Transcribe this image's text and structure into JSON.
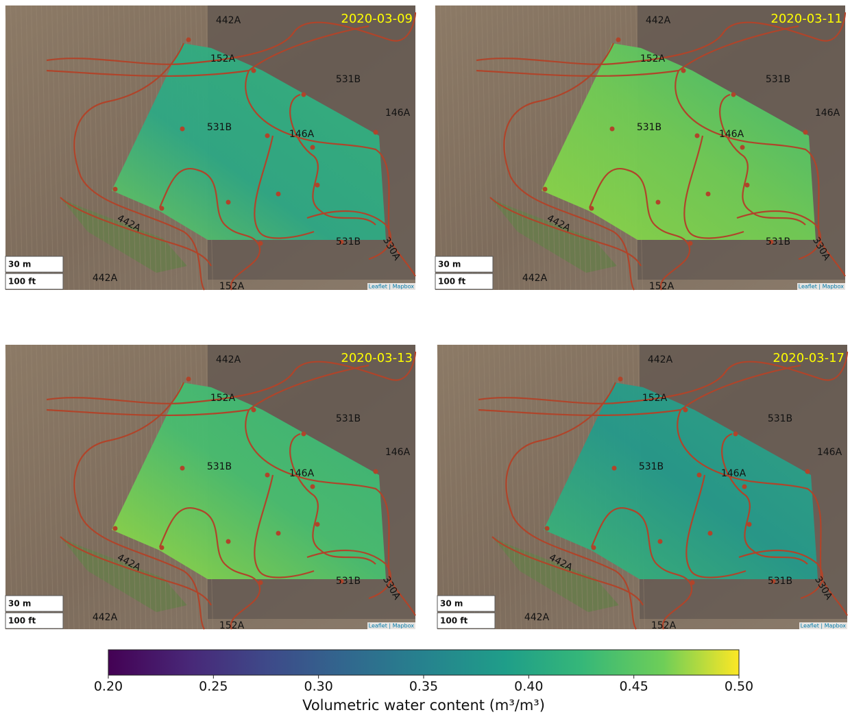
{
  "panels": [
    {
      "date": "2020-03-09",
      "soil_labels": [
        "442A",
        "152A",
        "531B",
        "146A",
        "531B",
        "146A",
        "442A",
        "531B",
        "330A",
        "442A",
        "152A"
      ],
      "scale": [
        "30 m",
        "100 ft"
      ],
      "attribution": "Leaflet | Mapbox"
    },
    {
      "date": "2020-03-11",
      "soil_labels": [
        "442A",
        "152A",
        "531B",
        "146A",
        "531B",
        "146A",
        "442A",
        "531B",
        "330A",
        "442A",
        "152A"
      ],
      "scale": [
        "30 m",
        "100 ft"
      ],
      "attribution": "Leaflet | Mapbox"
    },
    {
      "date": "2020-03-13",
      "soil_labels": [
        "442A",
        "152A",
        "531B",
        "146A",
        "531B",
        "146A",
        "442A",
        "531B",
        "330A",
        "442A",
        "152A"
      ],
      "scale": [
        "30 m",
        "100 ft"
      ],
      "attribution": "Leaflet | Mapbox"
    },
    {
      "date": "2020-03-17",
      "soil_labels": [
        "442A",
        "152A",
        "531B",
        "146A",
        "531B",
        "146A",
        "442A",
        "531B",
        "330A",
        "442A",
        "152A"
      ],
      "scale": [
        "30 m",
        "100 ft"
      ],
      "attribution": "Leaflet | Mapbox"
    }
  ],
  "colorbar": {
    "label": "Volumetric water content (m³/m³)",
    "lim": [
      0.2,
      0.5
    ],
    "ticks": [
      {
        "value": 0.2,
        "label": "0.20"
      },
      {
        "value": 0.25,
        "label": "0.25"
      },
      {
        "value": 0.3,
        "label": "0.30"
      },
      0.35,
      {
        "value": 0.4,
        "label": "0.40"
      },
      0.45,
      {
        "value": 0.5,
        "label": "0.50"
      }
    ]
  }
}
